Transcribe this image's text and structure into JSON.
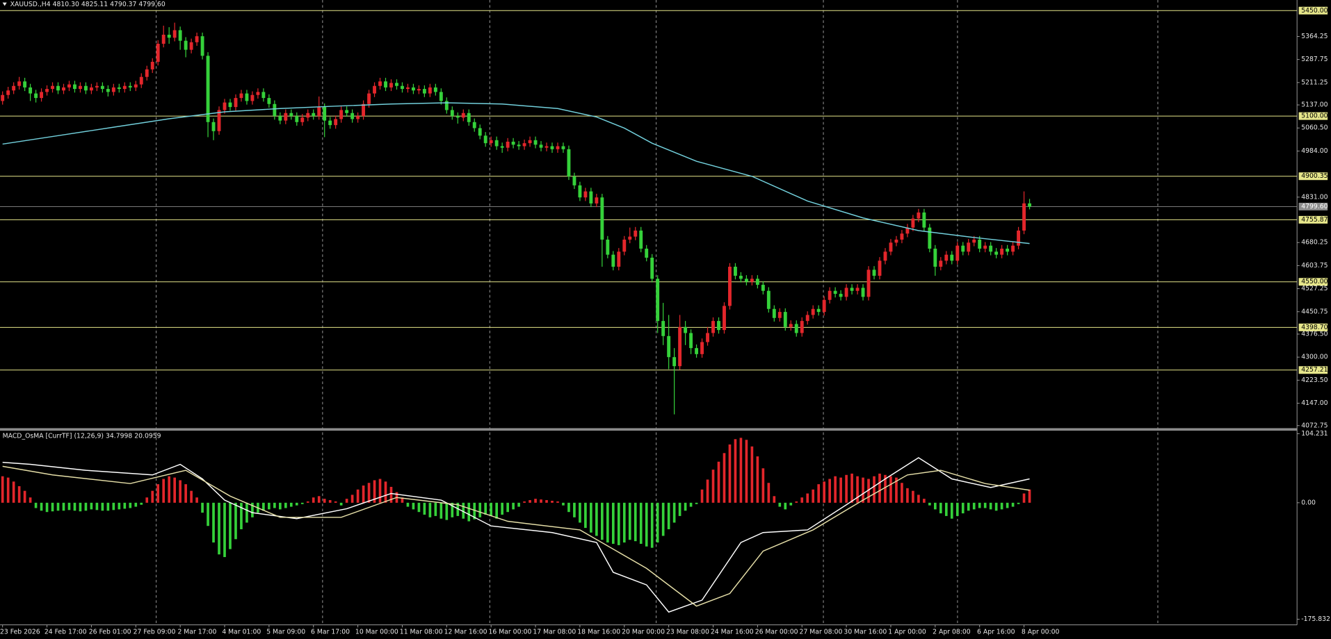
{
  "chart_data": [
    {
      "type": "candlestick",
      "title": "XAUUSD.,H4 4810.30 4825.11 4790.37 4799.60",
      "up_color": "#e3262b",
      "down_color": "#35d13a",
      "xlim": [
        -0.46,
        233.18
      ],
      "ylim": [
        4061.5,
        5485.2
      ],
      "yticks": [
        5364.25,
        5287.75,
        5211.25,
        {
          "value": 5137,
          "label": "5137.00"
        },
        {
          "value": 5060.5,
          "label": "5060.50"
        },
        {
          "value": 4984,
          "label": "4984.00"
        },
        {
          "value": 4831,
          "label": "4831.00"
        },
        4680.25,
        4603.75,
        4527.25,
        4450.75,
        {
          "value": 4376.5,
          "label": "4376.50"
        },
        {
          "value": 4300,
          "label": "4300.00"
        },
        {
          "value": 4223.5,
          "label": "4223.50"
        },
        {
          "value": 4147,
          "label": "4147.00"
        },
        4072.75
      ],
      "xticks": [
        {
          "value": 0,
          "label": "23 Feb 2026"
        },
        {
          "value": 8,
          "label": "24 Feb 17:00"
        },
        {
          "value": 16,
          "label": "26 Feb 01:00"
        },
        {
          "value": 24,
          "label": "27 Feb 09:00"
        },
        {
          "value": 32,
          "label": "2 Mar 17:00"
        },
        {
          "value": 40,
          "label": "4 Mar 01:00"
        },
        {
          "value": 48,
          "label": "5 Mar 09:00"
        },
        {
          "value": 56,
          "label": "6 Mar 17:00"
        },
        {
          "value": 64,
          "label": "10 Mar 00:00"
        },
        {
          "value": 72,
          "label": "11 Mar 08:00"
        },
        {
          "value": 80,
          "label": "12 Mar 16:00"
        },
        {
          "value": 88,
          "label": "16 Mar 00:00"
        },
        {
          "value": 96,
          "label": "17 Mar 08:00"
        },
        {
          "value": 104,
          "label": "18 Mar 16:00"
        },
        {
          "value": 112,
          "label": "20 Mar 00:00"
        },
        {
          "value": 120,
          "label": "23 Mar 08:00"
        },
        {
          "value": 128,
          "label": "24 Mar 16:00"
        },
        {
          "value": 136,
          "label": "26 Mar 00:00"
        },
        {
          "value": 144,
          "label": "27 Mar 08:00"
        },
        {
          "value": 152,
          "label": "30 Mar 16:00"
        },
        {
          "value": 160,
          "label": "1 Apr 00:00"
        },
        {
          "value": 168,
          "label": "2 Apr 08:00"
        },
        {
          "value": 176,
          "label": "6 Apr 16:00"
        },
        {
          "value": 184,
          "label": "8 Apr 00:00"
        }
      ],
      "level_color": "#e6e68a",
      "levels": [
        {
          "value": 5450,
          "label": "5450.00"
        },
        {
          "value": 5100,
          "label": "5100.00"
        },
        4900.35,
        4755.87,
        {
          "value": 4550,
          "label": "4550.00"
        },
        {
          "value": 4398.7,
          "label": "4398.70"
        },
        4257.21
      ],
      "current_color": "#8c8c8c",
      "current_price": {
        "value": 4799.6,
        "label": "4799.60"
      },
      "open": [
        5150,
        5170,
        5185,
        5200,
        5215,
        5195,
        5175,
        5160,
        5180,
        5190,
        5200,
        5185,
        5195,
        5205,
        5190,
        5200,
        5185,
        5195,
        5200,
        5190,
        5180,
        5195,
        5190,
        5200,
        5195,
        5205,
        5230,
        5255,
        5280,
        5340,
        5370,
        5360,
        5385,
        5350,
        5320,
        5345,
        5365,
        5300,
        5080,
        5050,
        5120,
        5145,
        5130,
        5160,
        5175,
        5150,
        5170,
        5180,
        5160,
        5140,
        5100,
        5085,
        5110,
        5100,
        5080,
        5095,
        5110,
        5100,
        5130,
        5085,
        5070,
        5090,
        5120,
        5110,
        5090,
        5100,
        5140,
        5175,
        5200,
        5215,
        5195,
        5210,
        5200,
        5190,
        5195,
        5185,
        5190,
        5175,
        5195,
        5180,
        5150,
        5120,
        5100,
        5095,
        5110,
        5080,
        5060,
        5035,
        5010,
        5020,
        5000,
        4995,
        5015,
        5005,
        5000,
        5010,
        5020,
        5005,
        4995,
        5000,
        4990,
        5000,
        4990,
        4900,
        4870,
        4830,
        4850,
        4810,
        4830,
        4690,
        4640,
        4600,
        4650,
        4690,
        4700,
        4720,
        4660,
        4630,
        4560,
        4420,
        4370,
        4300,
        4270,
        4400,
        4380,
        4330,
        4310,
        4350,
        4380,
        4420,
        4390,
        4470,
        4600,
        4570,
        4560,
        4550,
        4560,
        4540,
        4520,
        4460,
        4430,
        4450,
        4400,
        4410,
        4380,
        4420,
        4440,
        4460,
        4450,
        4490,
        4520,
        4510,
        4500,
        4530,
        4520,
        4530,
        4500,
        4590,
        4570,
        4620,
        4650,
        4680,
        4690,
        4710,
        4730,
        4760,
        4780,
        4730,
        4660,
        4600,
        4620,
        4640,
        4620,
        4670,
        4650,
        4680,
        4690,
        4660,
        4670,
        4650,
        4640,
        4660,
        4650,
        4670,
        4720,
        4810.3
      ],
      "high": [
        5182,
        5197,
        5212,
        5230,
        5227,
        5207,
        5187,
        5192,
        5202,
        5212,
        5212,
        5207,
        5217,
        5217,
        5212,
        5212,
        5207,
        5212,
        5212,
        5202,
        5207,
        5207,
        5212,
        5212,
        5217,
        5242,
        5267,
        5292,
        5352,
        5400,
        5395,
        5410,
        5397,
        5362,
        5357,
        5377,
        5377,
        5312,
        5092,
        5132,
        5157,
        5157,
        5172,
        5187,
        5187,
        5182,
        5192,
        5192,
        5172,
        5152,
        5112,
        5122,
        5122,
        5112,
        5107,
        5122,
        5122,
        5165,
        5142,
        5097,
        5102,
        5132,
        5132,
        5122,
        5112,
        5152,
        5187,
        5212,
        5227,
        5227,
        5222,
        5222,
        5212,
        5207,
        5207,
        5202,
        5202,
        5207,
        5207,
        5192,
        5162,
        5132,
        5112,
        5122,
        5122,
        5092,
        5072,
        5047,
        5032,
        5032,
        5012,
        5027,
        5027,
        5017,
        5022,
        5032,
        5032,
        5017,
        5012,
        5012,
        5012,
        5012,
        5002,
        4912,
        4882,
        4862,
        4862,
        4842,
        4842,
        4702,
        4652,
        4662,
        4702,
        4730,
        4732,
        4732,
        4672,
        4642,
        4572,
        4480,
        4440,
        4330,
        4440,
        4420,
        4392,
        4342,
        4362,
        4400,
        4432,
        4432,
        4482,
        4612,
        4612,
        4582,
        4572,
        4572,
        4572,
        4552,
        4532,
        4472,
        4462,
        4462,
        4422,
        4422,
        4432,
        4452,
        4472,
        4472,
        4502,
        4532,
        4532,
        4522,
        4542,
        4542,
        4542,
        4542,
        4602,
        4602,
        4632,
        4662,
        4692,
        4702,
        4722,
        4742,
        4772,
        4792,
        4792,
        4742,
        4672,
        4632,
        4652,
        4652,
        4682,
        4682,
        4692,
        4702,
        4702,
        4682,
        4682,
        4662,
        4672,
        4672,
        4682,
        4732,
        4850,
        4825.11
      ],
      "low": [
        5138,
        5158,
        5173,
        5188,
        5183,
        5150,
        5145,
        5148,
        5168,
        5178,
        5173,
        5173,
        5183,
        5178,
        5178,
        5173,
        5173,
        5183,
        5178,
        5165,
        5168,
        5178,
        5178,
        5183,
        5183,
        5193,
        5218,
        5243,
        5268,
        5328,
        5340,
        5348,
        5320,
        5295,
        5308,
        5333,
        5288,
        5030,
        5020,
        5038,
        5108,
        5118,
        5118,
        5148,
        5138,
        5138,
        5158,
        5148,
        5128,
        5088,
        5073,
        5073,
        5088,
        5068,
        5068,
        5083,
        5088,
        5088,
        5030,
        5058,
        5058,
        5078,
        5098,
        5078,
        5078,
        5088,
        5128,
        5163,
        5188,
        5183,
        5183,
        5188,
        5178,
        5178,
        5173,
        5173,
        5163,
        5163,
        5168,
        5138,
        5108,
        5088,
        5075,
        5083,
        5068,
        5048,
        5023,
        4998,
        4998,
        4988,
        4978,
        4983,
        4993,
        4988,
        4988,
        4998,
        4993,
        4983,
        4983,
        4978,
        4978,
        4978,
        4888,
        4858,
        4818,
        4818,
        4798,
        4798,
        4600,
        4628,
        4588,
        4588,
        4638,
        4678,
        4688,
        4648,
        4618,
        4548,
        4380,
        4340,
        4260,
        4110,
        4258,
        4340,
        4310,
        4298,
        4298,
        4338,
        4368,
        4378,
        4378,
        4458,
        4558,
        4548,
        4538,
        4538,
        4528,
        4508,
        4448,
        4418,
        4418,
        4388,
        4388,
        4368,
        4368,
        4408,
        4428,
        4438,
        4438,
        4478,
        4498,
        4488,
        4488,
        4508,
        4508,
        4488,
        4488,
        4558,
        4558,
        4608,
        4638,
        4668,
        4678,
        4698,
        4718,
        4748,
        4718,
        4648,
        4570,
        4588,
        4608,
        4608,
        4608,
        4638,
        4638,
        4668,
        4648,
        4648,
        4638,
        4628,
        4628,
        4638,
        4638,
        4658,
        4708,
        4790.37
      ],
      "close": [
        5170,
        5185,
        5200,
        5215,
        5195,
        5175,
        5160,
        5180,
        5190,
        5200,
        5185,
        5195,
        5205,
        5190,
        5200,
        5185,
        5195,
        5200,
        5190,
        5180,
        5195,
        5190,
        5200,
        5195,
        5205,
        5230,
        5255,
        5280,
        5340,
        5370,
        5360,
        5385,
        5350,
        5320,
        5345,
        5365,
        5300,
        5080,
        5050,
        5120,
        5145,
        5130,
        5160,
        5175,
        5150,
        5170,
        5180,
        5160,
        5140,
        5100,
        5085,
        5110,
        5100,
        5080,
        5095,
        5110,
        5100,
        5130,
        5085,
        5070,
        5090,
        5120,
        5110,
        5090,
        5100,
        5140,
        5175,
        5200,
        5215,
        5195,
        5210,
        5200,
        5190,
        5195,
        5185,
        5190,
        5175,
        5195,
        5180,
        5150,
        5120,
        5100,
        5095,
        5110,
        5080,
        5060,
        5035,
        5010,
        5020,
        5000,
        4995,
        5015,
        5005,
        5000,
        5010,
        5020,
        5005,
        4995,
        5000,
        4990,
        5000,
        4990,
        4900,
        4870,
        4830,
        4850,
        4810,
        4830,
        4690,
        4640,
        4600,
        4650,
        4690,
        4700,
        4720,
        4660,
        4630,
        4560,
        4420,
        4370,
        4300,
        4270,
        4400,
        4380,
        4330,
        4310,
        4350,
        4380,
        4420,
        4390,
        4470,
        4600,
        4570,
        4560,
        4550,
        4560,
        4540,
        4520,
        4460,
        4430,
        4450,
        4400,
        4410,
        4380,
        4420,
        4440,
        4460,
        4450,
        4490,
        4520,
        4510,
        4500,
        4530,
        4520,
        4530,
        4500,
        4590,
        4570,
        4620,
        4650,
        4680,
        4690,
        4710,
        4730,
        4760,
        4780,
        4730,
        4660,
        4600,
        4620,
        4640,
        4620,
        4670,
        4650,
        4680,
        4690,
        4660,
        4670,
        4650,
        4640,
        4660,
        4650,
        4670,
        4720,
        4810.3,
        4799.6
      ],
      "series": [
        {
          "color": "#72d0dc",
          "x": [
            0,
            10,
            20,
            30,
            40,
            50,
            60,
            70,
            80,
            90,
            100,
            107,
            112,
            117,
            125,
            135,
            145,
            155,
            165,
            175,
            185
          ],
          "values": [
            5007,
            5035,
            5063,
            5091,
            5114,
            5125,
            5133,
            5140,
            5144,
            5140,
            5125,
            5097,
            5060,
            5010,
            4950,
            4900,
            4818,
            4762,
            4720,
            4697,
            4677
          ]
        }
      ]
    },
    {
      "type": "bar",
      "title": "MACD_OsMA [CurrTF] (12,26,9) 34.7998 20.0959",
      "pos_color": "#e3262b",
      "neg_color": "#35d13a",
      "xlim": [
        -0.46,
        233.18
      ],
      "ylim": [
        -184.3,
        107.5
      ],
      "yticks": [
        104.231,
        {
          "value": 0,
          "label": "0.00"
        },
        -175.832
      ],
      "values": [
        40,
        38,
        32,
        25,
        18,
        8,
        -8,
        -12,
        -14,
        -13,
        -12,
        -12,
        -11,
        -12,
        -13,
        -12,
        -10,
        -11,
        -12,
        -12,
        -11,
        -10,
        -9,
        -8,
        -6,
        -3,
        8,
        18,
        28,
        36,
        40,
        38,
        34,
        28,
        18,
        8,
        -15,
        -35,
        -60,
        -78,
        -82,
        -70,
        -55,
        -40,
        -30,
        -22,
        -15,
        -12,
        -10,
        -8,
        -10,
        -8,
        -6,
        -4,
        -2,
        2,
        8,
        10,
        6,
        4,
        2,
        -4,
        6,
        12,
        20,
        26,
        30,
        34,
        36,
        32,
        24,
        16,
        8,
        -6,
        -10,
        -14,
        -18,
        -22,
        -20,
        -24,
        -26,
        -22,
        -20,
        -24,
        -28,
        -25,
        -22,
        -18,
        -20,
        -24,
        -18,
        -14,
        -10,
        -6,
        2,
        4,
        6,
        5,
        4,
        3,
        2,
        -4,
        -14,
        -22,
        -30,
        -38,
        -45,
        -50,
        -56,
        -60,
        -62,
        -64,
        -60,
        -56,
        -58,
        -62,
        -66,
        -68,
        -60,
        -50,
        -40,
        -30,
        -20,
        -12,
        -6,
        -2,
        20,
        35,
        50,
        62,
        75,
        88,
        96,
        98,
        95,
        85,
        70,
        52,
        30,
        10,
        -6,
        -10,
        -4,
        2,
        8,
        14,
        20,
        28,
        32,
        36,
        40,
        38,
        42,
        44,
        40,
        38,
        36,
        40,
        44,
        42,
        40,
        38,
        30,
        22,
        18,
        12,
        6,
        -4,
        -10,
        -16,
        -20,
        -24,
        -20,
        -16,
        -12,
        -10,
        -8,
        -8,
        -10,
        -12,
        -10,
        -8,
        -6,
        -2,
        14,
        20
      ],
      "series": [
        {
          "color": "#ffffff",
          "x": [
            0,
            5,
            15,
            27,
            32,
            36,
            40,
            45,
            53,
            62,
            70,
            79,
            88,
            99,
            107,
            110,
            116,
            120,
            126,
            133,
            137,
            145,
            152,
            159,
            165,
            171,
            178,
            185
          ],
          "values": [
            61,
            58,
            49,
            42,
            58,
            36,
            4,
            -15,
            -24,
            -9,
            14,
            4,
            -35,
            -45,
            -60,
            -105,
            -124,
            -165,
            -147,
            -60,
            -45,
            -41,
            -3,
            36,
            68,
            36,
            23,
            36
          ]
        },
        {
          "color": "#e6dfa8",
          "x": [
            0,
            9,
            23,
            33,
            41,
            50,
            61,
            71,
            82,
            91,
            104,
            116,
            125,
            131,
            137,
            146,
            155,
            163,
            169,
            177,
            185
          ],
          "values": [
            55,
            42,
            29,
            49,
            10,
            -22,
            -22,
            8,
            -3,
            -28,
            -41,
            -99,
            -156,
            -137,
            -73,
            -41,
            4,
            42,
            49,
            29,
            19
          ]
        }
      ]
    }
  ]
}
